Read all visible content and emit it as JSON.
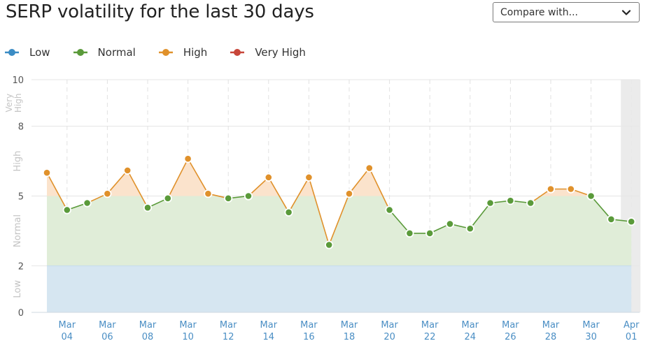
{
  "title": "SERP volatility for the last 30 days",
  "compare": {
    "label": "Compare with..."
  },
  "legend": [
    {
      "label": "Low",
      "color": "#3b8cc4"
    },
    {
      "label": "Normal",
      "color": "#5a9a3a"
    },
    {
      "label": "High",
      "color": "#e0912b"
    },
    {
      "label": "Very High",
      "color": "#c8463a"
    }
  ],
  "chart_data": {
    "type": "line",
    "ylim": [
      0,
      10
    ],
    "yticks": [
      "0",
      "2",
      "5",
      "8",
      "10"
    ],
    "bands": [
      {
        "label": "Low",
        "range": [
          0,
          2
        ],
        "color": "#d6e6f1"
      },
      {
        "label": "Normal",
        "range": [
          2,
          5
        ],
        "color": "#e0edd8"
      },
      {
        "label": "High",
        "range": [
          5,
          8
        ],
        "color": "#fbe3cc"
      },
      {
        "label": "Very High",
        "range": [
          8,
          10
        ],
        "color": "#f6d4d0"
      }
    ],
    "x": [
      "Mar 03",
      "Mar 04",
      "Mar 05",
      "Mar 06",
      "Mar 07",
      "Mar 08",
      "Mar 09",
      "Mar 10",
      "Mar 11",
      "Mar 12",
      "Mar 13",
      "Mar 14",
      "Mar 15",
      "Mar 16",
      "Mar 17",
      "Mar 18",
      "Mar 19",
      "Mar 20",
      "Mar 21",
      "Mar 22",
      "Mar 23",
      "Mar 24",
      "Mar 25",
      "Mar 26",
      "Mar 27",
      "Mar 28",
      "Mar 29",
      "Mar 30",
      "Mar 31",
      "Apr 01"
    ],
    "xticks": [
      {
        "month": "Mar",
        "day": "04",
        "index": 1
      },
      {
        "month": "Mar",
        "day": "06",
        "index": 3
      },
      {
        "month": "Mar",
        "day": "08",
        "index": 5
      },
      {
        "month": "Mar",
        "day": "10",
        "index": 7
      },
      {
        "month": "Mar",
        "day": "12",
        "index": 9
      },
      {
        "month": "Mar",
        "day": "14",
        "index": 11
      },
      {
        "month": "Mar",
        "day": "16",
        "index": 13
      },
      {
        "month": "Mar",
        "day": "18",
        "index": 15
      },
      {
        "month": "Mar",
        "day": "20",
        "index": 17
      },
      {
        "month": "Mar",
        "day": "22",
        "index": 19
      },
      {
        "month": "Mar",
        "day": "24",
        "index": 21
      },
      {
        "month": "Mar",
        "day": "26",
        "index": 23
      },
      {
        "month": "Mar",
        "day": "28",
        "index": 25
      },
      {
        "month": "Mar",
        "day": "30",
        "index": 27
      },
      {
        "month": "Apr",
        "day": "01",
        "index": 29
      }
    ],
    "values": [
      6.0,
      4.4,
      4.7,
      5.1,
      6.1,
      4.5,
      4.9,
      6.6,
      5.1,
      4.9,
      5.0,
      5.8,
      4.3,
      5.8,
      2.9,
      5.1,
      6.2,
      4.4,
      3.4,
      3.4,
      3.8,
      3.6,
      4.7,
      4.8,
      4.7,
      5.3,
      5.3,
      5.0,
      4.0,
      3.9
    ],
    "highlight_last": true
  }
}
